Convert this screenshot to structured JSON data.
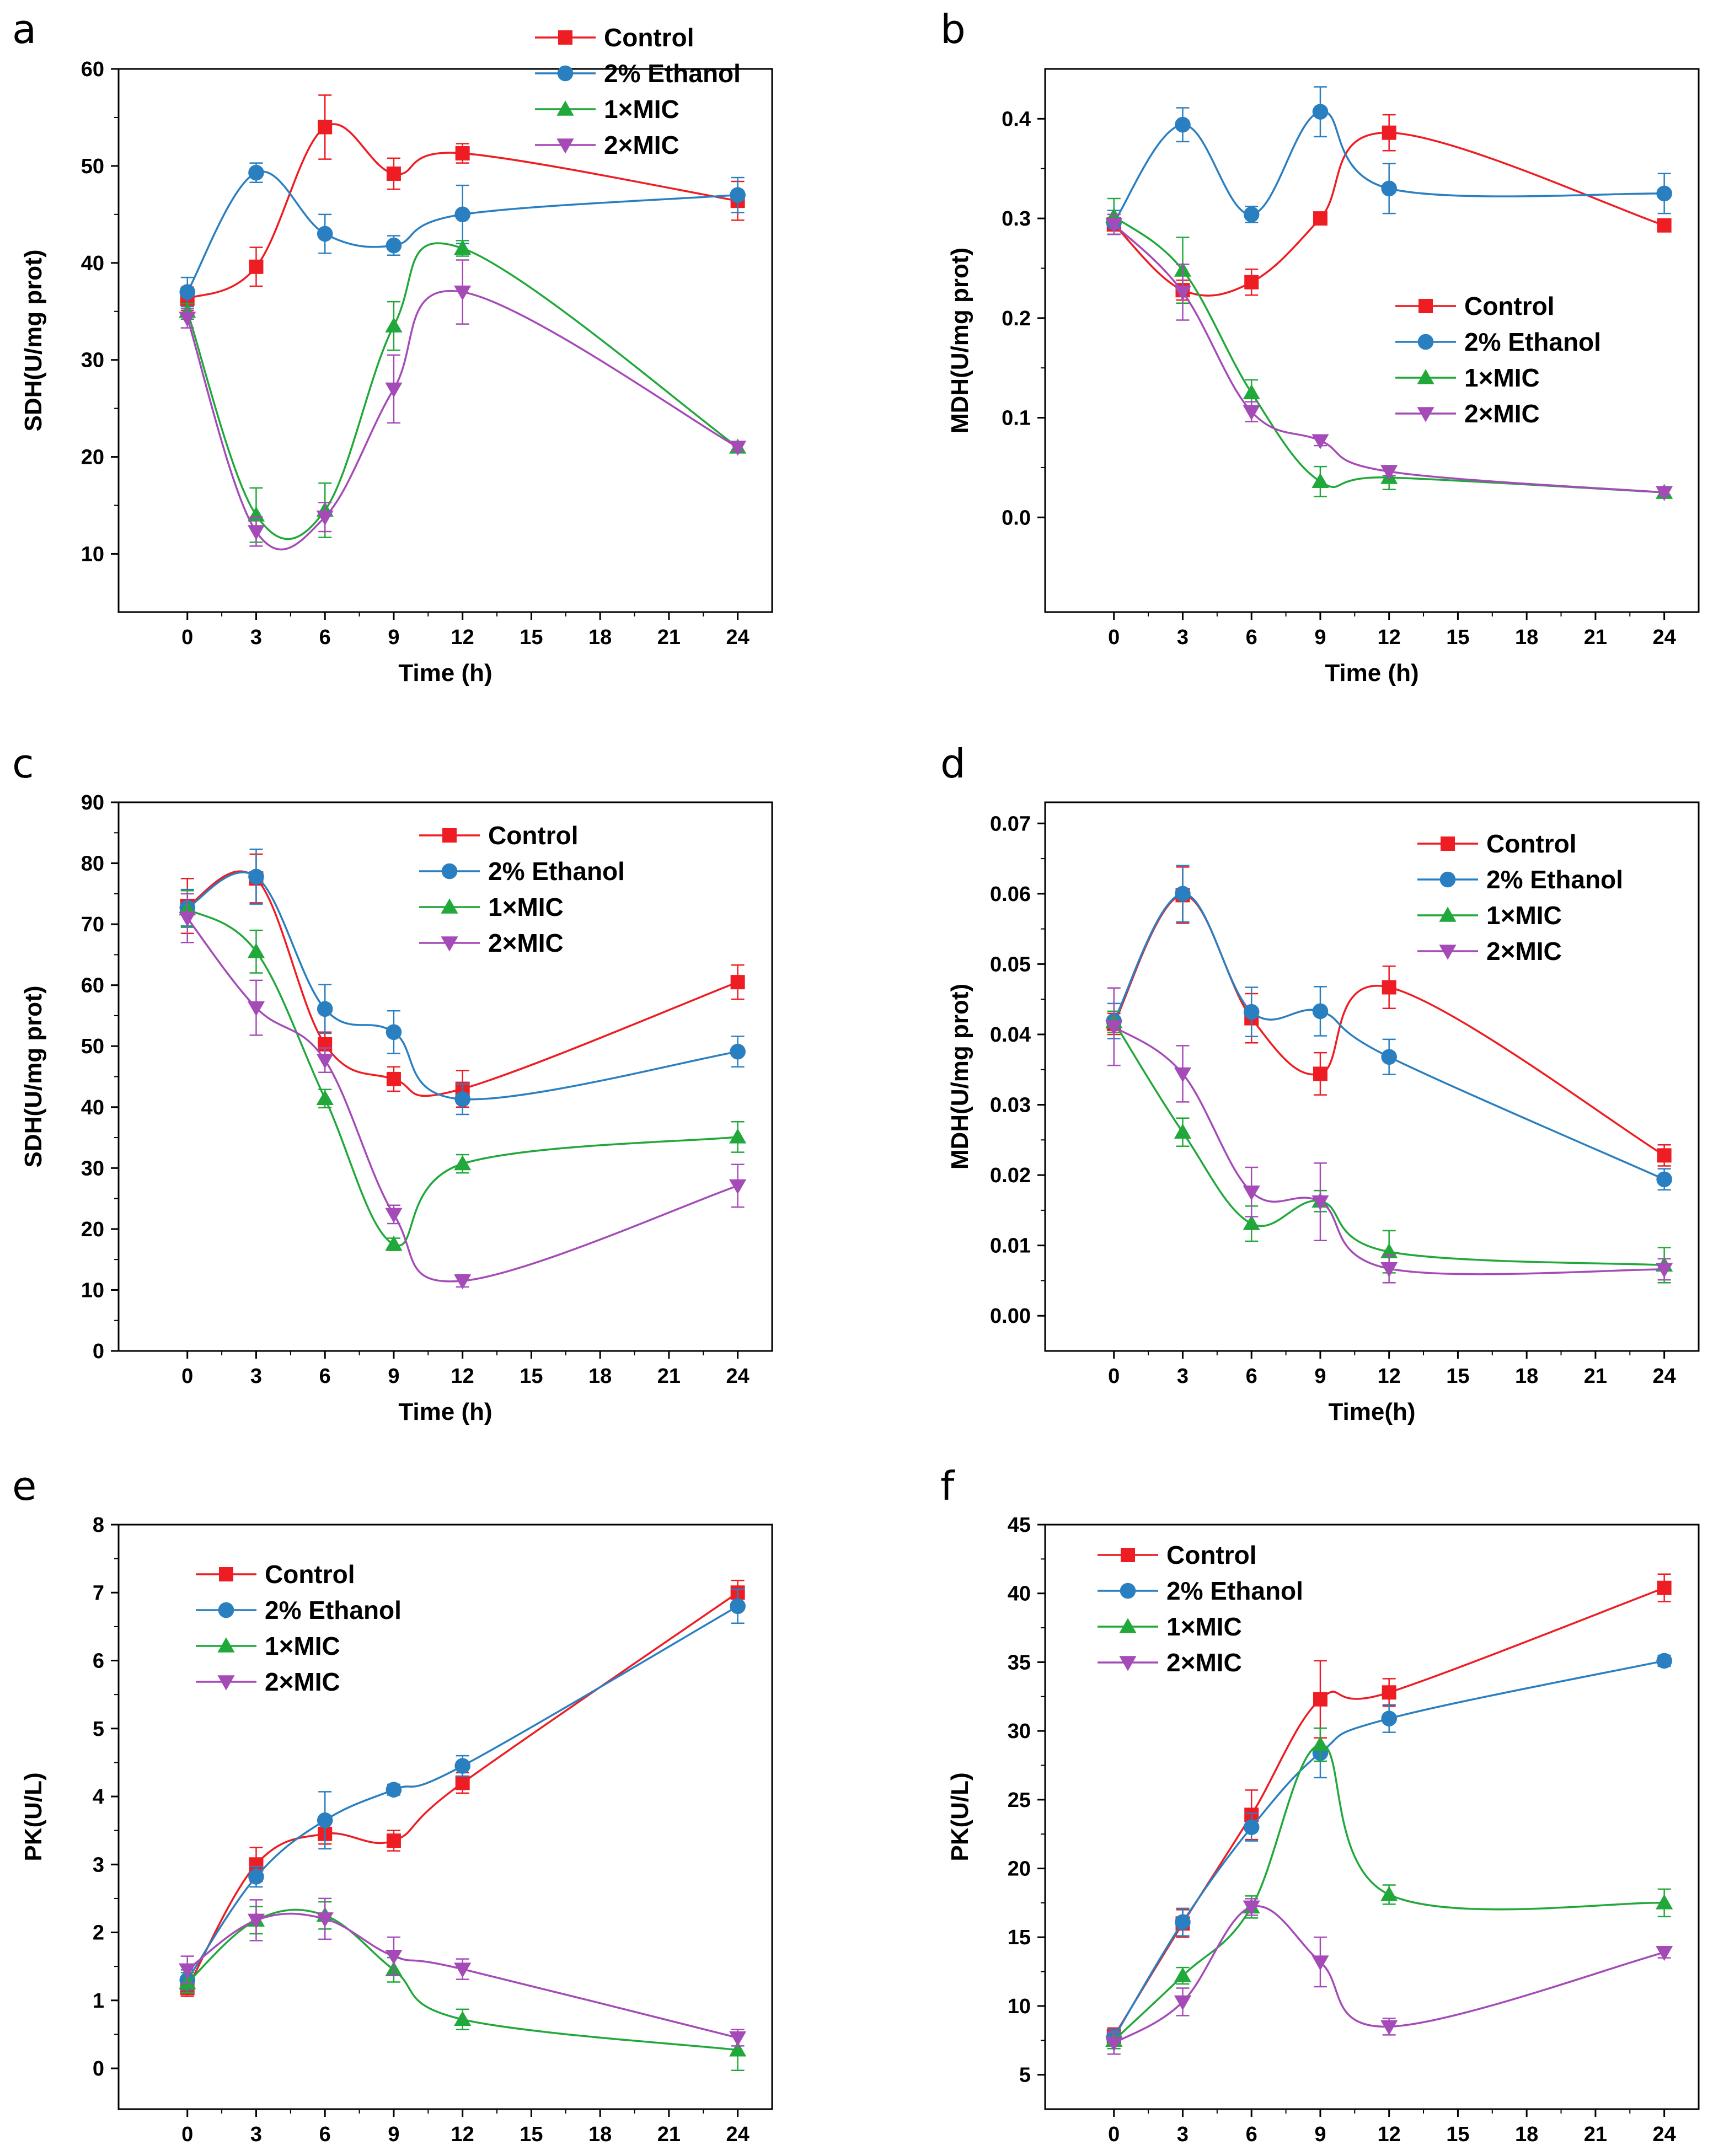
{
  "figure": {
    "series_styles": [
      {
        "name": "Control",
        "color": "#ee1d23",
        "marker": "square"
      },
      {
        "name": "2% Ethanol",
        "color": "#2a7fc1",
        "marker": "circle"
      },
      {
        "name": "1×MIC",
        "color": "#21a83a",
        "marker": "triangle-up"
      },
      {
        "name": "2×MIC",
        "color": "#a54bb8",
        "marker": "triangle-down"
      }
    ]
  },
  "chart_data": [
    {
      "panel": "a",
      "type": "line",
      "xlabel": "Time (h)",
      "ylabel": "SDH(U/mg prot)",
      "xlim": [
        -3,
        25.5
      ],
      "ylim": [
        4,
        60
      ],
      "xticks": [
        0,
        3,
        6,
        9,
        12,
        15,
        18,
        21,
        24
      ],
      "xtick_labels": [
        "0",
        "3",
        "6",
        "9",
        "12",
        "15",
        "18",
        "21",
        "24"
      ],
      "yticks": [
        10,
        20,
        30,
        40,
        50,
        60
      ],
      "ytick_labels": [
        "10",
        "20",
        "30",
        "40",
        "50",
        "60"
      ],
      "legend_position": "top-right",
      "x": [
        0,
        3,
        6,
        9,
        12,
        24
      ],
      "series": [
        {
          "name": "Control",
          "values": [
            36.3,
            39.6,
            54.0,
            49.2,
            51.3,
            46.4
          ],
          "errors": [
            1.2,
            2.0,
            3.3,
            1.6,
            1.0,
            2.0
          ]
        },
        {
          "name": "2% Ethanol",
          "values": [
            37.0,
            49.3,
            43.0,
            41.8,
            45.0,
            47.0
          ],
          "errors": [
            1.5,
            1.0,
            2.0,
            1.0,
            3.0,
            1.8
          ]
        },
        {
          "name": "1×MIC",
          "values": [
            35.0,
            14.0,
            14.5,
            33.5,
            41.5,
            21.0
          ],
          "errors": [
            0.8,
            2.8,
            2.8,
            2.5,
            0.8,
            0.4
          ]
        },
        {
          "name": "2×MIC",
          "values": [
            34.3,
            12.3,
            13.8,
            27.0,
            37.0,
            21.0
          ],
          "errors": [
            1.0,
            1.5,
            1.5,
            3.5,
            3.3,
            0.4
          ]
        }
      ]
    },
    {
      "panel": "b",
      "type": "line",
      "xlabel": "Time (h)",
      "ylabel": "MDH(U/mg prot)",
      "xlim": [
        -3,
        25.5
      ],
      "ylim": [
        -0.095,
        0.45
      ],
      "xticks": [
        0,
        3,
        6,
        9,
        12,
        15,
        18,
        21,
        24
      ],
      "xtick_labels": [
        "0",
        "3",
        "6",
        "9",
        "12",
        "15",
        "18",
        "21",
        "24"
      ],
      "yticks": [
        0.0,
        0.1,
        0.2,
        0.3,
        0.4
      ],
      "ytick_labels": [
        "0.0",
        "0.1",
        "0.2",
        "0.3",
        "0.4"
      ],
      "legend_position": "center-right",
      "x": [
        0,
        3,
        6,
        9,
        12,
        24
      ],
      "series": [
        {
          "name": "Control",
          "values": [
            0.294,
            0.228,
            0.236,
            0.3,
            0.386,
            0.293
          ],
          "errors": [
            0.01,
            0.01,
            0.013,
            0.005,
            0.018,
            0.006
          ]
        },
        {
          "name": "2% Ethanol",
          "values": [
            0.296,
            0.394,
            0.304,
            0.407,
            0.33,
            0.325
          ],
          "errors": [
            0.012,
            0.017,
            0.008,
            0.025,
            0.025,
            0.02
          ]
        },
        {
          "name": "1×MIC",
          "values": [
            0.302,
            0.248,
            0.125,
            0.036,
            0.04,
            0.025
          ],
          "errors": [
            0.018,
            0.033,
            0.013,
            0.015,
            0.012,
            0.003
          ]
        },
        {
          "name": "2×MIC",
          "values": [
            0.294,
            0.226,
            0.106,
            0.077,
            0.046,
            0.025
          ],
          "errors": [
            0.01,
            0.028,
            0.01,
            0.005,
            0.004,
            0.003
          ]
        }
      ]
    },
    {
      "panel": "c",
      "type": "line",
      "xlabel": "Time (h)",
      "ylabel": "SDH(U/mg prot)",
      "xlim": [
        -3,
        25.5
      ],
      "ylim": [
        0,
        90
      ],
      "xticks": [
        0,
        3,
        6,
        9,
        12,
        15,
        18,
        21,
        24
      ],
      "xtick_labels": [
        "0",
        "3",
        "6",
        "9",
        "12",
        "15",
        "18",
        "21",
        "24"
      ],
      "yticks": [
        0,
        10,
        20,
        30,
        40,
        50,
        60,
        70,
        80,
        90
      ],
      "ytick_labels": [
        "0",
        "10",
        "20",
        "30",
        "40",
        "50",
        "60",
        "70",
        "80",
        "90"
      ],
      "legend_position": "top-right",
      "x": [
        0,
        3,
        6,
        9,
        12,
        24
      ],
      "series": [
        {
          "name": "Control",
          "values": [
            73.0,
            77.5,
            50.3,
            44.6,
            43.0,
            60.5
          ],
          "errors": [
            4.5,
            4.0,
            2.0,
            2.0,
            3.0,
            2.8
          ]
        },
        {
          "name": "2% Ethanol",
          "values": [
            72.7,
            77.8,
            56.1,
            52.3,
            41.3,
            49.1
          ],
          "errors": [
            3.0,
            4.5,
            4.0,
            3.5,
            2.5,
            2.5
          ]
        },
        {
          "name": "1×MIC",
          "values": [
            72.5,
            65.5,
            41.4,
            17.5,
            30.7,
            35.1
          ],
          "errors": [
            3.0,
            3.5,
            1.5,
            1.0,
            1.5,
            2.5
          ]
        },
        {
          "name": "2×MIC",
          "values": [
            71.0,
            56.3,
            47.7,
            22.4,
            11.5,
            27.1
          ],
          "errors": [
            4.0,
            4.5,
            2.0,
            1.5,
            1.0,
            3.5
          ]
        }
      ]
    },
    {
      "panel": "d",
      "type": "line",
      "xlabel": "Time(h)",
      "ylabel": "MDH(U/mg prot)",
      "xlim": [
        -3,
        25.5
      ],
      "ylim": [
        -0.005,
        0.073
      ],
      "xticks": [
        0,
        3,
        6,
        9,
        12,
        15,
        18,
        21,
        24
      ],
      "xtick_labels": [
        "0",
        "3",
        "6",
        "9",
        "12",
        "15",
        "18",
        "21",
        "24"
      ],
      "yticks": [
        0.0,
        0.01,
        0.02,
        0.03,
        0.04,
        0.05,
        0.06,
        0.07
      ],
      "ytick_labels": [
        "0.00",
        "0.01",
        "0.02",
        "0.03",
        "0.04",
        "0.05",
        "0.06",
        "0.07"
      ],
      "legend_position": "top-right",
      "x": [
        0,
        3,
        6,
        9,
        12,
        24
      ],
      "series": [
        {
          "name": "Control",
          "values": [
            0.0415,
            0.0598,
            0.0423,
            0.0344,
            0.0467,
            0.0228
          ],
          "errors": [
            0.0015,
            0.004,
            0.0035,
            0.003,
            0.003,
            0.0015
          ]
        },
        {
          "name": "2% Ethanol",
          "values": [
            0.0419,
            0.06,
            0.0432,
            0.0433,
            0.0368,
            0.0194
          ],
          "errors": [
            0.0025,
            0.004,
            0.0035,
            0.0035,
            0.0025,
            0.0015
          ]
        },
        {
          "name": "1×MIC",
          "values": [
            0.0418,
            0.0261,
            0.0131,
            0.0163,
            0.0091,
            0.0072
          ],
          "errors": [
            0.0015,
            0.002,
            0.0025,
            0.0015,
            0.003,
            0.0025
          ]
        },
        {
          "name": "2×MIC",
          "values": [
            0.0411,
            0.0344,
            0.0176,
            0.0162,
            0.0067,
            0.0066
          ],
          "errors": [
            0.0055,
            0.004,
            0.0035,
            0.0055,
            0.002,
            0.0015
          ]
        }
      ]
    },
    {
      "panel": "e",
      "type": "line",
      "xlabel": "Time (h)",
      "ylabel": "PK(U/L)",
      "xlim": [
        -3,
        25.5
      ],
      "ylim": [
        -0.6,
        8
      ],
      "xticks": [
        0,
        3,
        6,
        9,
        12,
        15,
        18,
        21,
        24
      ],
      "xtick_labels": [
        "0",
        "3",
        "6",
        "9",
        "12",
        "15",
        "18",
        "21",
        "24"
      ],
      "yticks": [
        0,
        1,
        2,
        3,
        4,
        5,
        6,
        7,
        8
      ],
      "ytick_labels": [
        "0",
        "1",
        "2",
        "3",
        "4",
        "5",
        "6",
        "7",
        "8"
      ],
      "legend_position": "top-left",
      "x": [
        0,
        3,
        6,
        9,
        12,
        24
      ],
      "series": [
        {
          "name": "Control",
          "values": [
            1.18,
            3.0,
            3.45,
            3.35,
            4.2,
            7.0
          ],
          "errors": [
            0.12,
            0.25,
            0.15,
            0.15,
            0.15,
            0.18
          ]
        },
        {
          "name": "2% Ethanol",
          "values": [
            1.3,
            2.82,
            3.65,
            4.1,
            4.45,
            6.8
          ],
          "errors": [
            0.15,
            0.15,
            0.42,
            0.08,
            0.15,
            0.25
          ]
        },
        {
          "name": "1×MIC",
          "values": [
            1.26,
            2.18,
            2.25,
            1.45,
            0.72,
            0.27
          ],
          "errors": [
            0.15,
            0.2,
            0.2,
            0.18,
            0.15,
            0.3
          ]
        },
        {
          "name": "2×MIC",
          "values": [
            1.45,
            2.18,
            2.2,
            1.65,
            1.46,
            0.45
          ],
          "errors": [
            0.2,
            0.3,
            0.3,
            0.28,
            0.15,
            0.12
          ]
        }
      ]
    },
    {
      "panel": "f",
      "type": "line",
      "xlabel": "Time (h)",
      "ylabel": "PK(U/L)",
      "xlim": [
        -3,
        25.5
      ],
      "ylim": [
        2.5,
        45
      ],
      "xticks": [
        0,
        3,
        6,
        9,
        12,
        15,
        18,
        21,
        24
      ],
      "xtick_labels": [
        "0",
        "3",
        "6",
        "9",
        "12",
        "15",
        "18",
        "21",
        "24"
      ],
      "yticks": [
        5,
        10,
        15,
        20,
        25,
        30,
        35,
        40,
        45
      ],
      "ytick_labels": [
        "5",
        "10",
        "15",
        "20",
        "25",
        "30",
        "35",
        "40",
        "45"
      ],
      "legend_position": "top-left",
      "x": [
        0,
        3,
        6,
        9,
        12,
        24
      ],
      "series": [
        {
          "name": "Control",
          "values": [
            7.8,
            16.0,
            23.9,
            32.3,
            32.8,
            40.4
          ],
          "errors": [
            0.6,
            1.0,
            1.8,
            2.8,
            1.0,
            1.0
          ]
        },
        {
          "name": "2% Ethanol",
          "values": [
            7.7,
            16.1,
            23.0,
            28.4,
            30.9,
            35.1
          ],
          "errors": [
            0.6,
            1.0,
            1.0,
            1.8,
            1.0,
            0.4
          ]
        },
        {
          "name": "1×MIC",
          "values": [
            7.5,
            12.2,
            17.2,
            29.0,
            18.1,
            17.5
          ],
          "errors": [
            0.6,
            0.6,
            0.8,
            1.2,
            0.7,
            1.0
          ]
        },
        {
          "name": "2×MIC",
          "values": [
            7.3,
            10.3,
            17.2,
            13.2,
            8.5,
            13.9
          ],
          "errors": [
            0.8,
            1.0,
            0.6,
            1.8,
            0.6,
            0.4
          ]
        }
      ]
    }
  ]
}
